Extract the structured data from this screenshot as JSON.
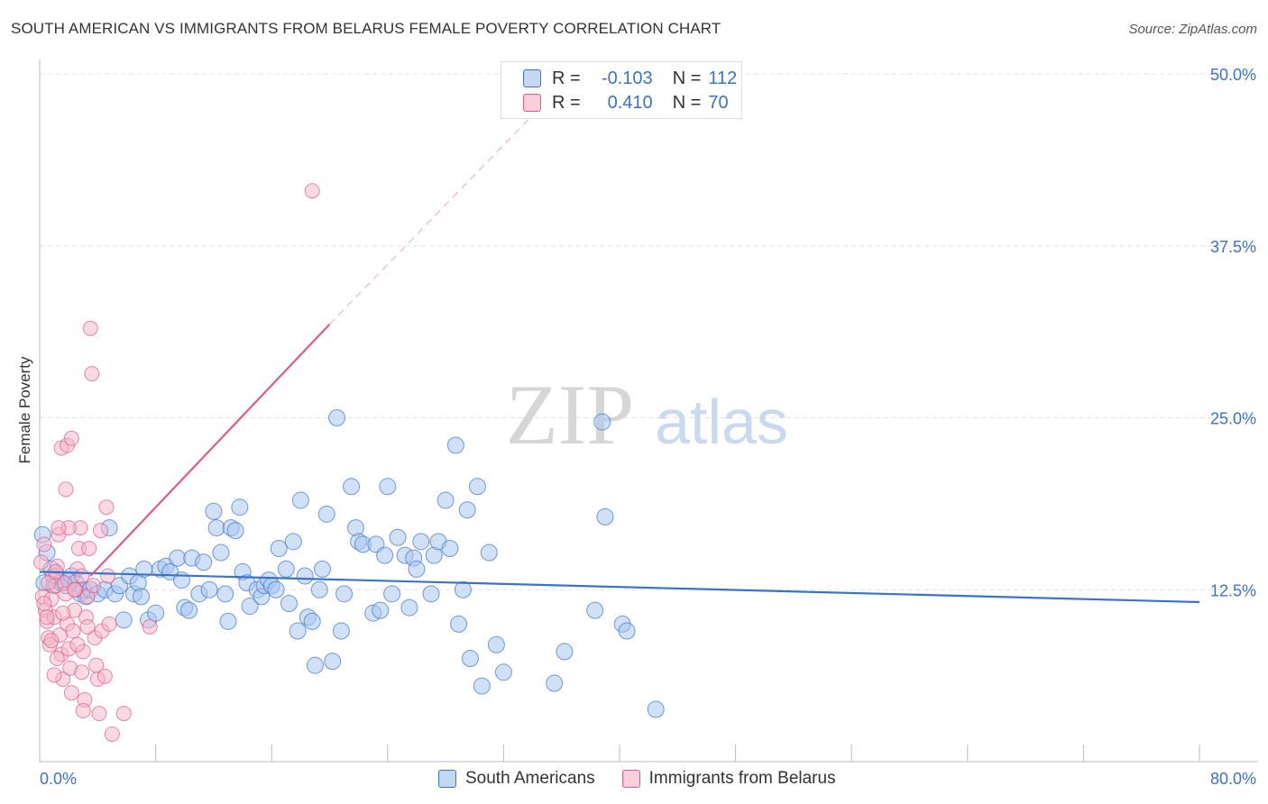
{
  "title": "SOUTH AMERICAN VS IMMIGRANTS FROM BELARUS FEMALE POVERTY CORRELATION CHART",
  "source": "Source: ZipAtlas.com",
  "watermark": {
    "zip": "ZIP",
    "atlas": "atlas"
  },
  "colors": {
    "blue": "#3b73c8",
    "blue_fill": "#a9c6ee",
    "pink": "#e05a8a",
    "pink_fill": "#f6b3c8",
    "grid": "#e3e3e3"
  },
  "legend": {
    "rows": [
      {
        "r_label": "R =",
        "r_value": "-0.103",
        "n_label": "N =",
        "n_value": "112"
      },
      {
        "r_label": "R =",
        "r_value": "0.410",
        "n_label": "N =",
        "n_value": "70"
      }
    ]
  },
  "bottom_legend": {
    "blue": "South Americans",
    "pink": "Immigrants from Belarus"
  },
  "chart_data": {
    "type": "scatter",
    "title": "SOUTH AMERICAN VS IMMIGRANTS FROM BELARUS FEMALE POVERTY CORRELATION CHART",
    "ylabel": "Female Poverty",
    "xlabel": "",
    "xlim": [
      0,
      80
    ],
    "ylim": [
      0,
      50
    ],
    "x_tick_labels": [
      "0.0%",
      "80.0%"
    ],
    "y_tick_labels": [
      "12.5%",
      "25.0%",
      "37.5%",
      "50.0%"
    ],
    "y_ticks": [
      12.5,
      25,
      37.5,
      50
    ],
    "grid": true,
    "legend_position": "top-center",
    "series": [
      {
        "name": "South Americans",
        "color": "#3b73c8",
        "trend": {
          "x": [
            0,
            80
          ],
          "y": [
            13.8,
            11.6
          ]
        },
        "points": [
          [
            0.2,
            16.5
          ],
          [
            0.3,
            13.0
          ],
          [
            0.5,
            15.2
          ],
          [
            0.8,
            14.0
          ],
          [
            1.0,
            12.8
          ],
          [
            1.2,
            13.5
          ],
          [
            1.5,
            13.0
          ],
          [
            1.8,
            12.8
          ],
          [
            2.0,
            13.2
          ],
          [
            2.2,
            13.5
          ],
          [
            2.5,
            13.0
          ],
          [
            2.8,
            12.2
          ],
          [
            3.0,
            12.5
          ],
          [
            3.2,
            12.0
          ],
          [
            3.5,
            12.5
          ],
          [
            4.0,
            12.2
          ],
          [
            4.5,
            12.5
          ],
          [
            4.8,
            17.0
          ],
          [
            5.2,
            12.2
          ],
          [
            5.5,
            12.8
          ],
          [
            5.8,
            10.3
          ],
          [
            6.2,
            13.5
          ],
          [
            6.5,
            12.2
          ],
          [
            6.8,
            13.0
          ],
          [
            7.0,
            12.0
          ],
          [
            7.2,
            14.0
          ],
          [
            7.5,
            10.3
          ],
          [
            8.0,
            10.8
          ],
          [
            8.3,
            14.0
          ],
          [
            8.7,
            14.2
          ],
          [
            9.0,
            13.8
          ],
          [
            9.5,
            14.8
          ],
          [
            9.8,
            13.2
          ],
          [
            10.0,
            11.2
          ],
          [
            10.3,
            11.0
          ],
          [
            10.5,
            14.8
          ],
          [
            11.0,
            12.2
          ],
          [
            11.3,
            14.5
          ],
          [
            11.7,
            12.5
          ],
          [
            12.0,
            18.2
          ],
          [
            12.2,
            17.0
          ],
          [
            12.5,
            15.2
          ],
          [
            12.8,
            12.2
          ],
          [
            13.0,
            10.2
          ],
          [
            13.2,
            17.0
          ],
          [
            13.5,
            16.8
          ],
          [
            13.8,
            18.5
          ],
          [
            14.0,
            13.8
          ],
          [
            14.3,
            13.0
          ],
          [
            14.5,
            11.3
          ],
          [
            15.0,
            12.5
          ],
          [
            15.3,
            12.0
          ],
          [
            15.5,
            12.8
          ],
          [
            15.8,
            13.2
          ],
          [
            16.0,
            12.8
          ],
          [
            16.3,
            12.5
          ],
          [
            16.5,
            15.5
          ],
          [
            17.0,
            14.0
          ],
          [
            17.2,
            11.5
          ],
          [
            17.5,
            16.0
          ],
          [
            17.8,
            9.5
          ],
          [
            18.0,
            19.0
          ],
          [
            18.3,
            13.5
          ],
          [
            18.5,
            10.5
          ],
          [
            18.8,
            10.2
          ],
          [
            19.0,
            7.0
          ],
          [
            19.3,
            12.5
          ],
          [
            19.5,
            14.0
          ],
          [
            19.8,
            18.0
          ],
          [
            20.2,
            7.3
          ],
          [
            20.5,
            25.0
          ],
          [
            20.8,
            9.5
          ],
          [
            21.0,
            12.2
          ],
          [
            21.5,
            20.0
          ],
          [
            21.8,
            17.0
          ],
          [
            22.0,
            16.0
          ],
          [
            22.3,
            15.8
          ],
          [
            23.0,
            10.8
          ],
          [
            23.2,
            15.8
          ],
          [
            23.5,
            11.0
          ],
          [
            23.8,
            15.0
          ],
          [
            24.0,
            20.0
          ],
          [
            24.3,
            12.2
          ],
          [
            24.7,
            16.3
          ],
          [
            25.2,
            15.0
          ],
          [
            25.5,
            11.2
          ],
          [
            25.8,
            14.8
          ],
          [
            26.0,
            14.0
          ],
          [
            26.3,
            16.0
          ],
          [
            27.0,
            12.2
          ],
          [
            27.2,
            15.0
          ],
          [
            27.5,
            16.0
          ],
          [
            28.0,
            19.0
          ],
          [
            28.3,
            15.5
          ],
          [
            28.7,
            23.0
          ],
          [
            28.9,
            10.0
          ],
          [
            29.2,
            12.5
          ],
          [
            29.5,
            18.3
          ],
          [
            29.7,
            7.5
          ],
          [
            30.2,
            20.0
          ],
          [
            30.5,
            5.5
          ],
          [
            31.5,
            8.5
          ],
          [
            31.0,
            15.2
          ],
          [
            32.0,
            6.5
          ],
          [
            35.5,
            5.7
          ],
          [
            36.2,
            8.0
          ],
          [
            38.3,
            11.0
          ],
          [
            38.8,
            24.7
          ],
          [
            39.0,
            17.8
          ],
          [
            40.2,
            10.0
          ],
          [
            40.5,
            9.5
          ],
          [
            42.5,
            3.8
          ]
        ]
      },
      {
        "name": "Immigrants from Belarus",
        "color": "#e05a8a",
        "trend": {
          "x": [
            3.5,
            20.0
          ],
          "y": [
            13.5,
            31.8
          ]
        },
        "trend_dashed": {
          "x": [
            20.0,
            34.0
          ],
          "y": [
            31.8,
            47.0
          ]
        },
        "points": [
          [
            0.1,
            14.5
          ],
          [
            0.2,
            12.0
          ],
          [
            0.3,
            15.8
          ],
          [
            0.4,
            11.0
          ],
          [
            0.5,
            10.2
          ],
          [
            0.6,
            9.0
          ],
          [
            0.7,
            8.5
          ],
          [
            0.8,
            11.8
          ],
          [
            0.9,
            13.5
          ],
          [
            1.0,
            10.5
          ],
          [
            1.1,
            12.8
          ],
          [
            1.2,
            14.2
          ],
          [
            1.3,
            16.5
          ],
          [
            1.4,
            9.2
          ],
          [
            1.5,
            7.8
          ],
          [
            1.6,
            6.0
          ],
          [
            1.7,
            13.0
          ],
          [
            1.8,
            12.2
          ],
          [
            1.9,
            10.0
          ],
          [
            2.0,
            8.2
          ],
          [
            2.1,
            6.8
          ],
          [
            2.2,
            5.0
          ],
          [
            2.3,
            9.5
          ],
          [
            2.4,
            11.0
          ],
          [
            2.5,
            12.5
          ],
          [
            2.6,
            14.0
          ],
          [
            2.7,
            15.5
          ],
          [
            2.8,
            17.0
          ],
          [
            2.9,
            13.5
          ],
          [
            3.0,
            8.0
          ],
          [
            3.1,
            4.5
          ],
          [
            3.2,
            10.5
          ],
          [
            3.3,
            12.0
          ],
          [
            3.4,
            15.5
          ],
          [
            3.5,
            31.5
          ],
          [
            3.6,
            28.2
          ],
          [
            3.7,
            12.8
          ],
          [
            3.8,
            9.0
          ],
          [
            3.9,
            7.0
          ],
          [
            4.0,
            6.0
          ],
          [
            4.1,
            3.5
          ],
          [
            4.2,
            16.8
          ],
          [
            4.3,
            9.5
          ],
          [
            4.5,
            6.2
          ],
          [
            4.6,
            18.5
          ],
          [
            4.7,
            13.5
          ],
          [
            4.8,
            10.0
          ],
          [
            5.0,
            2.0
          ],
          [
            1.5,
            22.8
          ],
          [
            1.8,
            19.8
          ],
          [
            1.9,
            23.0
          ],
          [
            2.0,
            17.0
          ],
          [
            1.3,
            17.0
          ],
          [
            2.2,
            23.5
          ],
          [
            0.5,
            10.5
          ],
          [
            0.8,
            8.8
          ],
          [
            1.0,
            6.3
          ],
          [
            1.2,
            7.5
          ],
          [
            1.6,
            10.8
          ],
          [
            2.4,
            12.5
          ],
          [
            2.6,
            8.5
          ],
          [
            2.9,
            6.5
          ],
          [
            3.0,
            3.7
          ],
          [
            3.3,
            9.8
          ],
          [
            5.8,
            3.5
          ],
          [
            7.6,
            9.8
          ],
          [
            18.8,
            41.5
          ],
          [
            0.6,
            13.0
          ],
          [
            1.1,
            13.8
          ],
          [
            0.3,
            11.5
          ]
        ]
      }
    ]
  }
}
